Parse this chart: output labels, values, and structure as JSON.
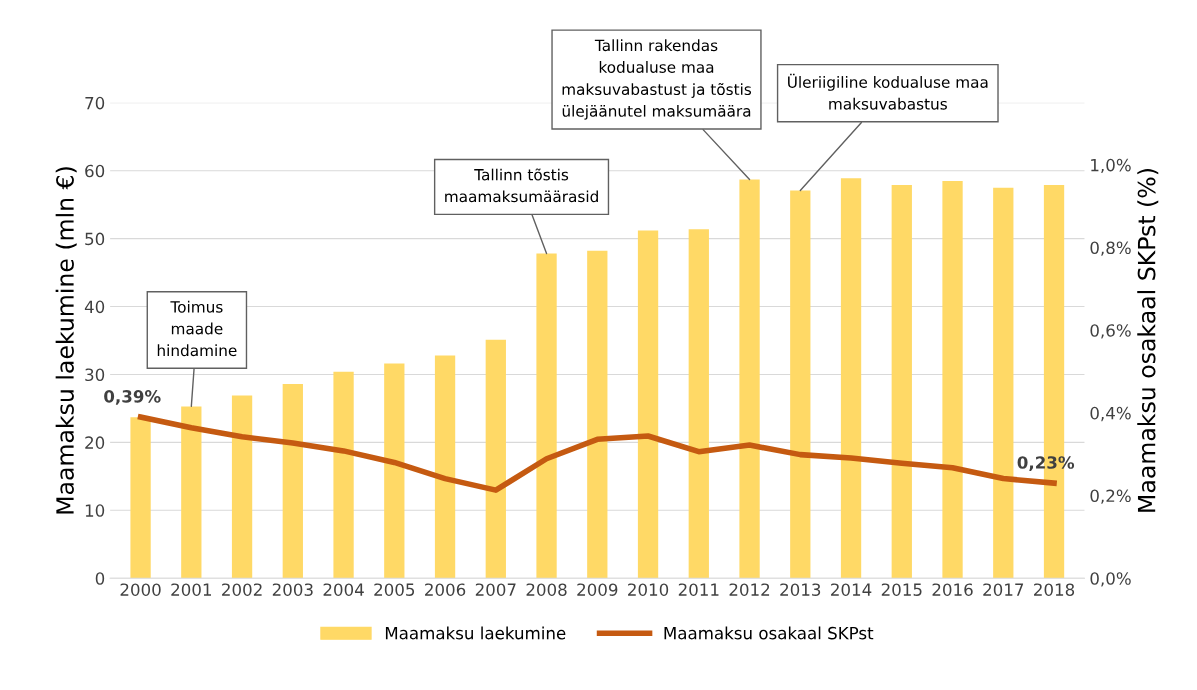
{
  "chart_data": {
    "type": "bar",
    "categories": [
      "2000",
      "2001",
      "2002",
      "2003",
      "2004",
      "2005",
      "2006",
      "2007",
      "2008",
      "2009",
      "2010",
      "2011",
      "2012",
      "2013",
      "2014",
      "2015",
      "2016",
      "2017",
      "2018"
    ],
    "series": [
      {
        "name": "Maamaksu laekumine",
        "color": "#ffd966",
        "values": [
          23.7,
          25.3,
          26.9,
          28.6,
          30.4,
          31.6,
          32.8,
          35.1,
          47.8,
          48.2,
          51.2,
          51.4,
          58.7,
          57.1,
          58.9,
          57.9,
          58.5,
          57.5,
          57.9
        ]
      },
      {
        "name": "Maamaksu osakaal SKPst",
        "type": "line",
        "axis": "y2",
        "color": "#c55a11",
        "values": [
          0.39,
          0.364,
          0.342,
          0.327,
          0.308,
          0.28,
          0.241,
          0.213,
          0.289,
          0.336,
          0.344,
          0.306,
          0.322,
          0.299,
          0.291,
          0.278,
          0.267,
          0.241,
          0.23
        ],
        "value_labels": [
          "0,39%",
          null,
          null,
          null,
          null,
          null,
          null,
          null,
          null,
          null,
          null,
          null,
          null,
          null,
          null,
          null,
          null,
          null,
          "0,23%"
        ]
      }
    ],
    "ylabel": "Maamaksu laekumine (mln €)",
    "y2label": "Maamaksu osakaal SKPst (%)",
    "ylim": [
      0,
      70
    ],
    "yticks": [
      0,
      10,
      20,
      30,
      40,
      50,
      60,
      70
    ],
    "y2lim": [
      0,
      1.15
    ],
    "y2ticks": [
      {
        "value": 0,
        "label": "0,0%"
      },
      {
        "value": 0.2,
        "label": "0,2%"
      },
      {
        "value": 0.4,
        "label": "0,4%"
      },
      {
        "value": 0.6,
        "label": "0,6%"
      },
      {
        "value": 0.8,
        "label": "0,8%"
      },
      {
        "value": 1.0,
        "label": "1,0%"
      }
    ],
    "grid": "y",
    "legend": "bottom",
    "annotations": [
      {
        "text": "Toimus\nmaade\nhindamine",
        "x": "2001",
        "y": 25.3
      },
      {
        "text": "Tallinn tõstis\nmaamaksumäärasid",
        "x": "2008",
        "y": 47.8
      },
      {
        "text": "Tallinn rakendas\nkodualuse maa\nmaksuvabastust ja tõstis\nülejäänutel maksumäära",
        "x": "2012",
        "y": 58.7
      },
      {
        "text": "Üleriigiline kodualuse maa\nmaksuvabastus",
        "x": "2013",
        "y": 57.1
      }
    ]
  }
}
